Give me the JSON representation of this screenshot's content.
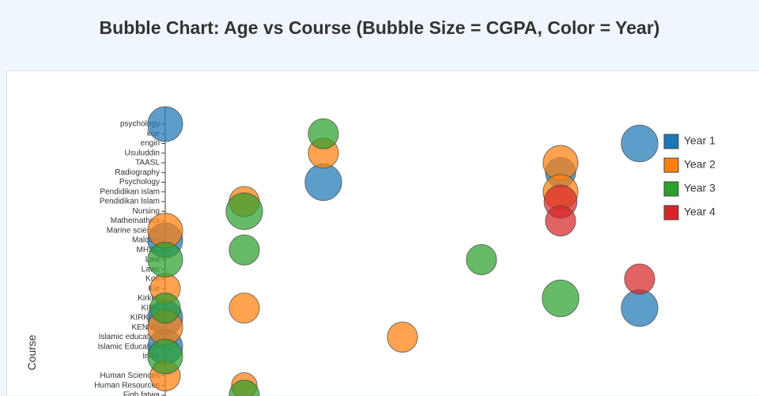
{
  "chart_data": {
    "type": "bubble",
    "title": "Bubble Chart: Age vs Course (Bubble Size = CGPA, Color = Year)",
    "y_label": "Course",
    "categories": [
      "psychology",
      "koe",
      "engin",
      "Usuluddin",
      "TAASL",
      "Radiography",
      "Psychology",
      "Pendidikan islam",
      "Pendidikan Islam",
      "Nursing",
      "Mathemathics",
      "Marine science",
      "Malcom",
      "MHSC",
      "Law",
      "Laws",
      "Koe",
      "Kie",
      "Kirkhs",
      "KIRK",
      "KIRKHS",
      "KENMS",
      "Islamic education",
      "Islamic Education",
      "Irkhs",
      "IT",
      "Human Sciences",
      "Human Resources",
      "Fiqh fatwa"
    ],
    "xlim": [
      17.3,
      24.7
    ],
    "series": [
      {
        "name": "Year 1",
        "color": "#1f77b4",
        "x": [
          18,
          20,
          23,
          24,
          18,
          18,
          18,
          24
        ],
        "y": [
          "psychology",
          "Psychology",
          "Radiography",
          "engin",
          "Malcom",
          "KIRKHS",
          "Islamic Education",
          "KIRK"
        ],
        "size": [
          3.8,
          4.0,
          3.3,
          4.0,
          3.8,
          3.8,
          3.8,
          4.0
        ]
      },
      {
        "name": "Year 2",
        "color": "#ff7f0e",
        "x": [
          20,
          23,
          23,
          19,
          19,
          19,
          18,
          18,
          18,
          18,
          21
        ],
        "y": [
          "Usuluddin",
          "TAASL",
          "Pendidikan islam",
          "Pendidikan Islam",
          "KIRK",
          "Human Resources",
          "Marine science",
          "Kie",
          "KENMS",
          "Human Sciences",
          "Islamic education"
        ],
        "size": [
          3.3,
          3.8,
          3.8,
          3.3,
          3.3,
          2.8,
          3.8,
          3.3,
          3.8,
          3.3,
          3.3
        ]
      },
      {
        "name": "Year 3",
        "color": "#2ca02c",
        "x": [
          20,
          19,
          19,
          19,
          18,
          18,
          18,
          22,
          23
        ],
        "y": [
          "koe",
          "Nursing",
          "MHSC",
          "Fiqh fatwa",
          "Law",
          "KIRK",
          "Irkhs",
          "Law",
          "Kirkhs"
        ],
        "size": [
          3.3,
          4.0,
          3.3,
          3.3,
          3.8,
          3.3,
          3.8,
          3.3,
          4.0
        ]
      },
      {
        "name": "Year 4",
        "color": "#d62728",
        "x": [
          23,
          23,
          24
        ],
        "y": [
          "Pendidikan Islam",
          "Mathemathics",
          "Koe"
        ],
        "size": [
          3.6,
          3.3,
          3.3
        ]
      }
    ]
  }
}
